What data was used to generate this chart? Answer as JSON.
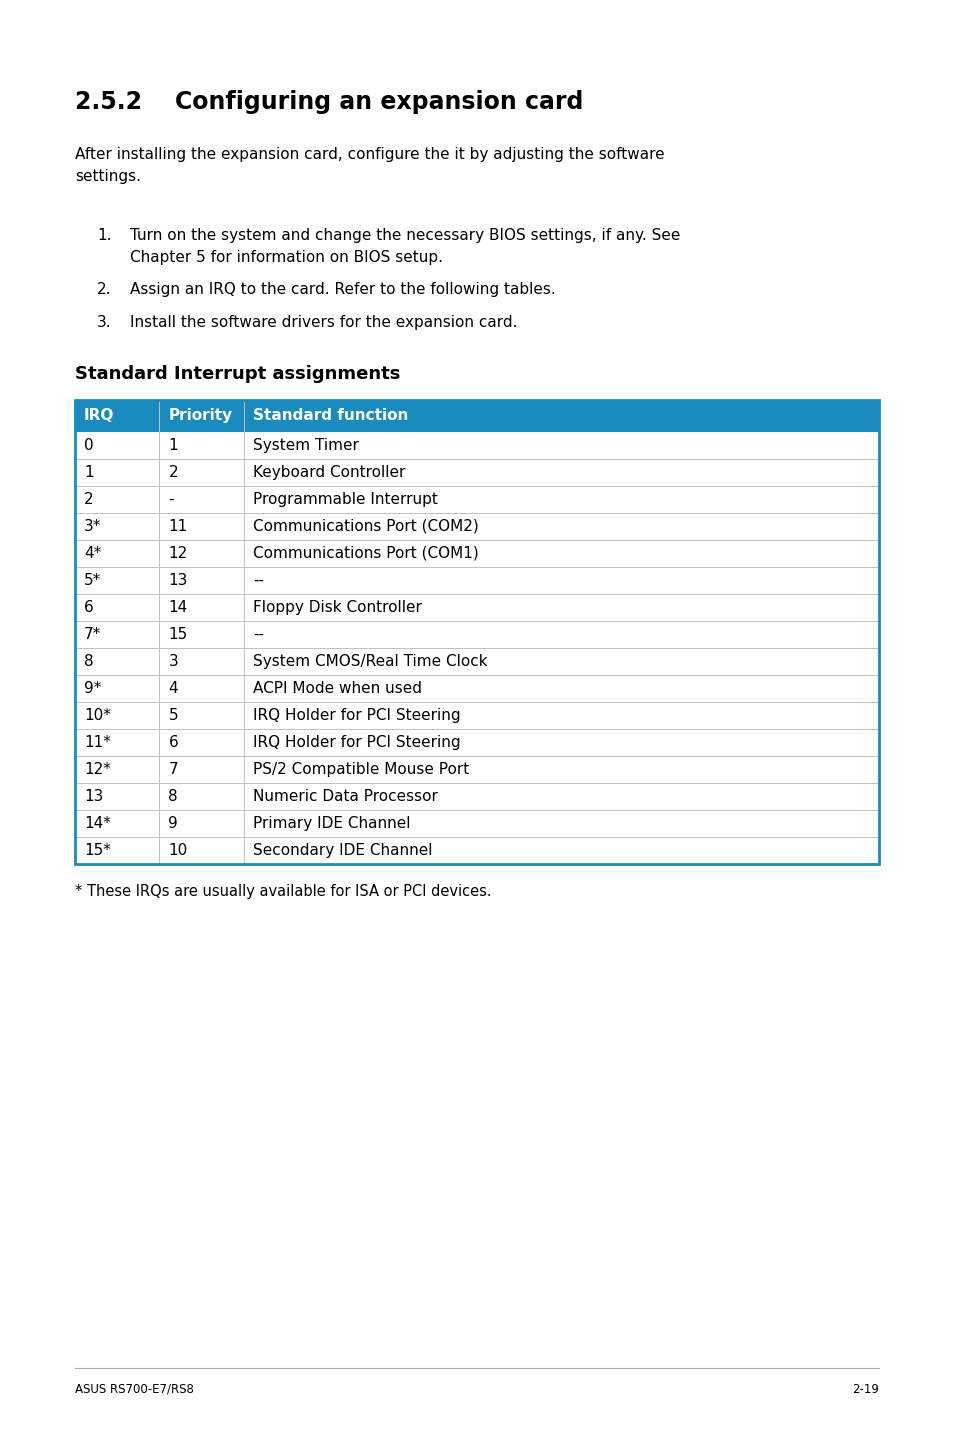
{
  "section_number": "2.5.2",
  "section_title": "Configuring an expansion card",
  "intro_text": "After installing the expansion card, configure the it by adjusting the software\nsettings.",
  "steps": [
    "Turn on the system and change the necessary BIOS settings, if any. See\nChapter 5 for information on BIOS setup.",
    "Assign an IRQ to the card. Refer to the following tables.",
    "Install the software drivers for the expansion card."
  ],
  "table_title": "Standard Interrupt assignments",
  "table_header": [
    "IRQ",
    "Priority",
    "Standard function"
  ],
  "table_data": [
    [
      "0",
      "1",
      "System Timer"
    ],
    [
      "1",
      "2",
      "Keyboard Controller"
    ],
    [
      "2",
      "-",
      "Programmable Interrupt"
    ],
    [
      "3*",
      "11",
      "Communications Port (COM2)"
    ],
    [
      "4*",
      "12",
      "Communications Port (COM1)"
    ],
    [
      "5*",
      "13",
      "--"
    ],
    [
      "6",
      "14",
      "Floppy Disk Controller"
    ],
    [
      "7*",
      "15",
      "--"
    ],
    [
      "8",
      "3",
      "System CMOS/Real Time Clock"
    ],
    [
      "9*",
      "4",
      "ACPI Mode when used"
    ],
    [
      "10*",
      "5",
      "IRQ Holder for PCI Steering"
    ],
    [
      "11*",
      "6",
      "IRQ Holder for PCI Steering"
    ],
    [
      "12*",
      "7",
      "PS/2 Compatible Mouse Port"
    ],
    [
      "13",
      "8",
      "Numeric Data Processor"
    ],
    [
      "14*",
      "9",
      "Primary IDE Channel"
    ],
    [
      "15*",
      "10",
      "Secondary IDE Channel"
    ]
  ],
  "footnote": "* These IRQs are usually available for ISA or PCI devices.",
  "footer_left": "ASUS RS700-E7/RS8",
  "footer_right": "2-19",
  "header_bg_color": "#1a8bbf",
  "header_text_color": "#ffffff",
  "table_border_color": "#1a8bbf",
  "row_line_color": "#c0c0c0",
  "bg_color": "#ffffff",
  "text_color": "#000000"
}
